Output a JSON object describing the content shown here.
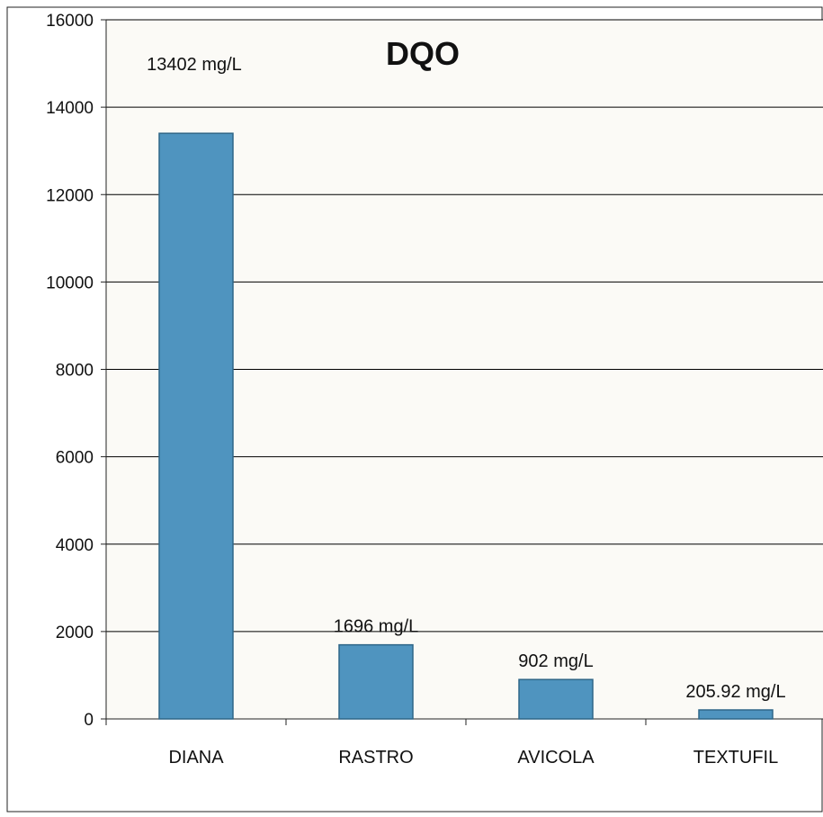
{
  "chart_data": {
    "type": "bar",
    "title": "DQO",
    "categories": [
      "DIANA",
      "RASTRO",
      "AVICOLA",
      "TEXTUFIL"
    ],
    "values": [
      13402,
      1696,
      902,
      205.92
    ],
    "data_labels": [
      "13402 mg/L",
      "1696 mg/L",
      "902 mg/L",
      "205.92 mg/L"
    ],
    "yticks": [
      "0",
      "2000",
      "4000",
      "6000",
      "8000",
      "10000",
      "12000",
      "14000",
      "16000"
    ],
    "ylim": [
      0,
      16000
    ],
    "xlabel": "",
    "ylabel": "",
    "grid": true,
    "legend": "none",
    "colors": {
      "bar_fill": "#4f94bf",
      "bar_stroke": "#2f6688",
      "plot_background": "#fbfaf6",
      "gridline": "#000000",
      "text": "#111111"
    }
  }
}
